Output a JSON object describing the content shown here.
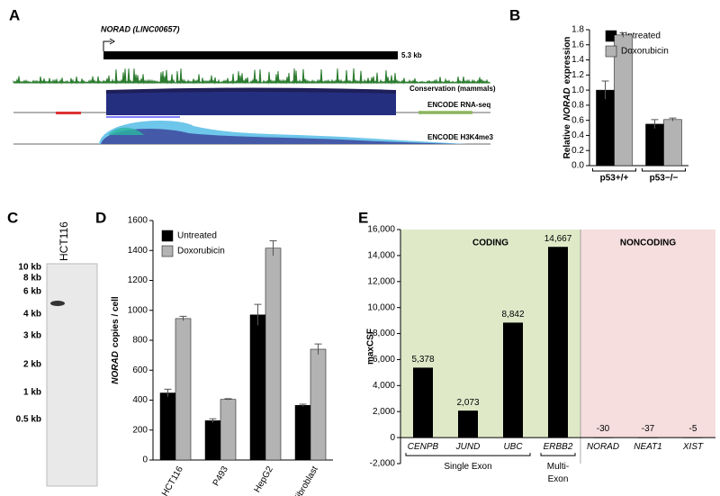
{
  "panel_letters": [
    "A",
    "B",
    "C",
    "D",
    "E"
  ],
  "panel_a": {
    "gene": "NORAD (LINC00657)",
    "length": "5.3 kb",
    "tracks": [
      "Conservation (mammals)",
      "ENCODE RNA-seq",
      "ENCODE H3K4me3"
    ]
  },
  "panel_c": {
    "lane": "HCT116",
    "markers": [
      "10 kb",
      "8 kb",
      "6 kb",
      "4 kb",
      "3 kb",
      "2 kb",
      "1 kb",
      "0.5 kb"
    ]
  },
  "chart_data": [
    {
      "type": "bar",
      "y_label_parts": [
        "Relative",
        "NORAD",
        "expression"
      ],
      "categories": [
        "p53+/+",
        "p53−/−"
      ],
      "series": [
        {
          "name": "Untreated",
          "color": "#000000",
          "values": [
            1.0,
            0.55
          ],
          "errors": [
            0.12,
            0.06
          ]
        },
        {
          "name": "Doxorubicin",
          "color": "#b3b3b3",
          "values": [
            1.73,
            0.61
          ],
          "errors": [
            0.03,
            0.02
          ]
        }
      ],
      "ylim": [
        0,
        1.8
      ],
      "yticks": [
        {
          "value": 0,
          "label": "0.0"
        },
        0.2,
        0.4,
        0.6,
        0.8,
        {
          "value": 1,
          "label": "1.0"
        },
        1.2,
        1.4,
        1.6,
        1.8
      ]
    },
    {
      "type": "bar",
      "y_label_parts": [
        "NORAD",
        "copies / cell"
      ],
      "categories": [
        "HCT116",
        "P493",
        "HepG2",
        "Fibroblast"
      ],
      "series": [
        {
          "name": "Untreated",
          "color": "#000000",
          "values": [
            448,
            263,
            970,
            365
          ],
          "errors": [
            25,
            12,
            70,
            8
          ]
        },
        {
          "name": "Doxorubicin",
          "color": "#b3b3b3",
          "values": [
            945,
            405,
            1415,
            740
          ],
          "errors": [
            15,
            5,
            50,
            35
          ]
        }
      ],
      "ylim": [
        0,
        1600
      ],
      "yticks": [
        0,
        200,
        400,
        600,
        800,
        1000,
        1200,
        1400,
        1600
      ]
    },
    {
      "type": "bar",
      "y_label": "maxCSF",
      "categories": [
        "CENPB",
        "JUND",
        "UBC",
        "ERBB2",
        "NORAD",
        "NEAT1",
        "XIST"
      ],
      "values": [
        5378,
        2073,
        8842,
        14667,
        -30,
        -37,
        -5
      ],
      "value_labels": [
        "5,378",
        "2,073",
        "8,842",
        "14,667",
        "-30",
        "-37",
        "-5"
      ],
      "color": "#000000",
      "regions": [
        {
          "label": "CODING",
          "color": "#dfe9c8"
        },
        {
          "label": "NONCODING",
          "color": "#f6dede"
        }
      ],
      "groups": [
        {
          "label": [
            "Single Exon"
          ]
        },
        {
          "label": [
            "Multi-",
            "Exon"
          ]
        }
      ],
      "ylim": [
        -2000,
        16000
      ],
      "yticks": [
        {
          "value": -2000,
          "label": "-2,000"
        },
        0,
        {
          "value": 2000,
          "label": "2,000"
        },
        {
          "value": 4000,
          "label": "4,000"
        },
        {
          "value": 6000,
          "label": "6,000"
        },
        {
          "value": 8000,
          "label": "8,000"
        },
        {
          "value": 10000,
          "label": "10,000"
        },
        {
          "value": 12000,
          "label": "12,000"
        },
        {
          "value": 14000,
          "label": "14,000"
        },
        {
          "value": 16000,
          "label": "16,000"
        }
      ]
    }
  ]
}
